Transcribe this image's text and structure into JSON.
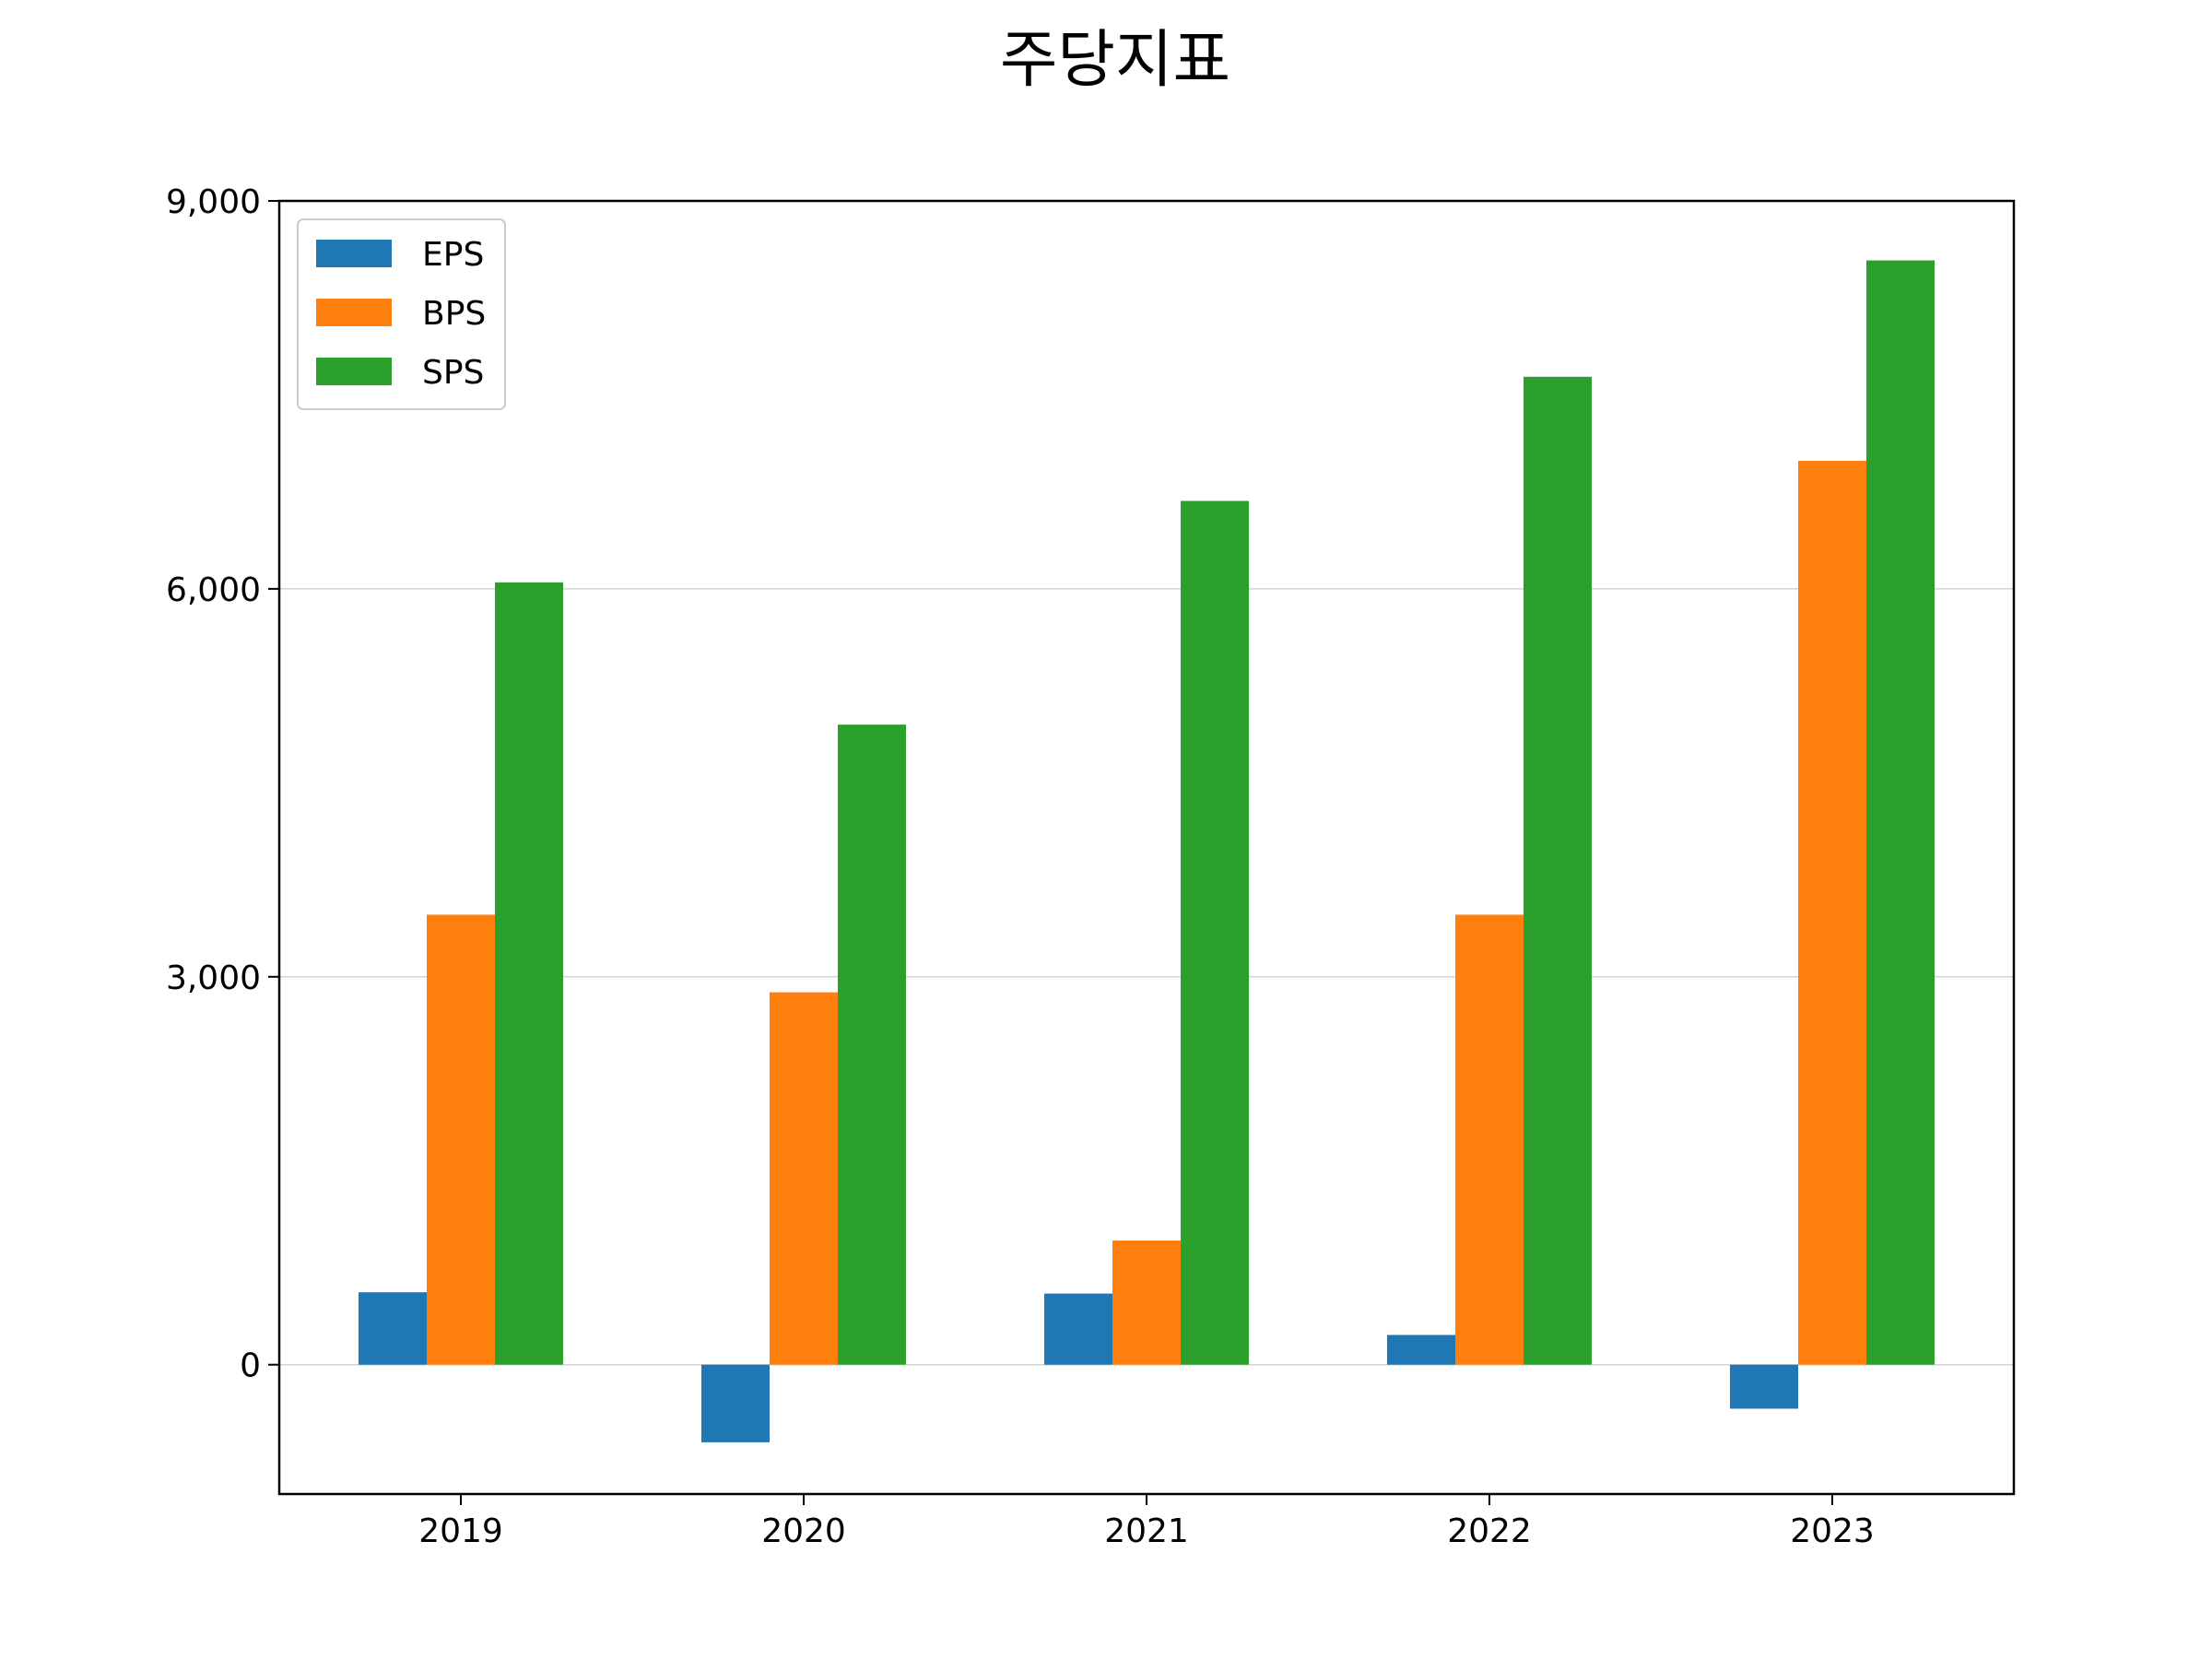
{
  "chart_data": {
    "type": "bar",
    "title": "주당지표",
    "xlabel": "",
    "ylabel": "",
    "categories": [
      "2019",
      "2020",
      "2021",
      "2022",
      "2023"
    ],
    "series": [
      {
        "name": "EPS",
        "color": "#1f77b4",
        "values": [
          560,
          -600,
          550,
          230,
          -340
        ]
      },
      {
        "name": "BPS",
        "color": "#ff7f0e",
        "values": [
          3480,
          2880,
          960,
          3480,
          6990
        ]
      },
      {
        "name": "SPS",
        "color": "#2ca02c",
        "values": [
          6050,
          4950,
          6680,
          7640,
          8540
        ]
      }
    ],
    "ylim": [
      -1000,
      9000
    ],
    "yticks": [
      0,
      3000,
      6000,
      9000
    ],
    "ytick_labels": [
      "0",
      "3,000",
      "6,000",
      "9,000"
    ],
    "grid": "horizontal",
    "legend": "top-left"
  }
}
